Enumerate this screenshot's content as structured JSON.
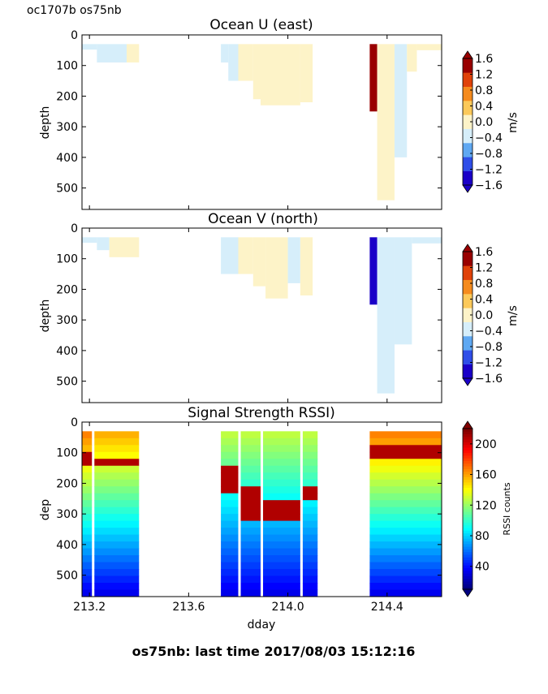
{
  "header": {
    "corner_label": "oc1707b os75nb",
    "footer_title": "os75nb: last time 2017/08/03 15:12:16"
  },
  "chart_data": [
    {
      "type": "heatmap",
      "title": "Ocean U (east)",
      "xlabel": "",
      "ylabel": "depth",
      "xlim": [
        213.17,
        214.62
      ],
      "ylim": [
        570,
        0
      ],
      "y_ticks": [
        "0",
        "100",
        "200",
        "300",
        "400",
        "500"
      ],
      "colorbar": {
        "label": "m/s",
        "ticks": [
          "1.6",
          "1.2",
          "0.8",
          "0.4",
          "0.0",
          "−0.4",
          "−0.8",
          "−1.2",
          "−1.6"
        ],
        "range": [
          -1.6,
          1.6
        ],
        "colors": [
          "#1a00c8",
          "#2f4ee8",
          "#5fa8f2",
          "#d6eefa",
          "#fdf3c8",
          "#fcc95a",
          "#f58b1e",
          "#e0420a",
          "#990000"
        ]
      },
      "data_blocks": [
        {
          "x0": 213.17,
          "x1": 213.23,
          "y0": 30,
          "y1": 48,
          "value": -0.2
        },
        {
          "x0": 213.23,
          "x1": 213.35,
          "y0": 30,
          "y1": 90,
          "value": -0.2
        },
        {
          "x0": 213.35,
          "x1": 213.4,
          "y0": 30,
          "y1": 90,
          "value": 0.1
        },
        {
          "x0": 213.73,
          "x1": 213.76,
          "y0": 30,
          "y1": 90,
          "value": -0.2
        },
        {
          "x0": 213.76,
          "x1": 213.8,
          "y0": 30,
          "y1": 150,
          "value": -0.2
        },
        {
          "x0": 213.8,
          "x1": 213.86,
          "y0": 30,
          "y1": 150,
          "value": 0.1
        },
        {
          "x0": 213.86,
          "x1": 213.89,
          "y0": 30,
          "y1": 210,
          "value": 0.1
        },
        {
          "x0": 213.89,
          "x1": 214.05,
          "y0": 30,
          "y1": 230,
          "value": 0.1
        },
        {
          "x0": 214.05,
          "x1": 214.1,
          "y0": 30,
          "y1": 220,
          "value": 0.1
        },
        {
          "x0": 214.33,
          "x1": 214.36,
          "y0": 30,
          "y1": 250,
          "value": 1.5
        },
        {
          "x0": 214.36,
          "x1": 214.43,
          "y0": 30,
          "y1": 540,
          "value": 0.1
        },
        {
          "x0": 214.43,
          "x1": 214.48,
          "y0": 30,
          "y1": 400,
          "value": -0.2
        },
        {
          "x0": 214.48,
          "x1": 214.52,
          "y0": 30,
          "y1": 120,
          "value": 0.1
        },
        {
          "x0": 214.52,
          "x1": 214.62,
          "y0": 30,
          "y1": 50,
          "value": 0.1
        }
      ]
    },
    {
      "type": "heatmap",
      "title": "Ocean V (north)",
      "xlabel": "",
      "ylabel": "depth",
      "xlim": [
        213.17,
        214.62
      ],
      "ylim": [
        570,
        0
      ],
      "y_ticks": [
        "0",
        "100",
        "200",
        "300",
        "400",
        "500"
      ],
      "colorbar": {
        "label": "m/s",
        "ticks": [
          "1.6",
          "1.2",
          "0.8",
          "0.4",
          "0.0",
          "−0.4",
          "−0.8",
          "−1.2",
          "−1.6"
        ],
        "range": [
          -1.6,
          1.6
        ],
        "colors": [
          "#1a00c8",
          "#2f4ee8",
          "#5fa8f2",
          "#d6eefa",
          "#fdf3c8",
          "#fcc95a",
          "#f58b1e",
          "#e0420a",
          "#990000"
        ]
      },
      "data_blocks": [
        {
          "x0": 213.17,
          "x1": 213.23,
          "y0": 30,
          "y1": 48,
          "value": -0.2
        },
        {
          "x0": 213.23,
          "x1": 213.28,
          "y0": 30,
          "y1": 72,
          "value": -0.2
        },
        {
          "x0": 213.28,
          "x1": 213.4,
          "y0": 30,
          "y1": 95,
          "value": 0.1
        },
        {
          "x0": 213.73,
          "x1": 213.8,
          "y0": 30,
          "y1": 150,
          "value": -0.2
        },
        {
          "x0": 213.8,
          "x1": 213.86,
          "y0": 30,
          "y1": 150,
          "value": 0.1
        },
        {
          "x0": 213.86,
          "x1": 213.91,
          "y0": 30,
          "y1": 190,
          "value": 0.1
        },
        {
          "x0": 213.91,
          "x1": 214.0,
          "y0": 30,
          "y1": 230,
          "value": 0.1
        },
        {
          "x0": 214.0,
          "x1": 214.05,
          "y0": 30,
          "y1": 180,
          "value": -0.2
        },
        {
          "x0": 214.05,
          "x1": 214.1,
          "y0": 30,
          "y1": 220,
          "value": 0.1
        },
        {
          "x0": 214.33,
          "x1": 214.36,
          "y0": 30,
          "y1": 250,
          "value": -1.6
        },
        {
          "x0": 214.36,
          "x1": 214.43,
          "y0": 30,
          "y1": 540,
          "value": -0.2
        },
        {
          "x0": 214.43,
          "x1": 214.5,
          "y0": 30,
          "y1": 380,
          "value": -0.2
        },
        {
          "x0": 214.5,
          "x1": 214.62,
          "y0": 30,
          "y1": 50,
          "value": -0.2
        }
      ]
    },
    {
      "type": "heatmap",
      "title": "Signal Strength RSSI)",
      "xlabel": "dday",
      "ylabel": "dep",
      "xlim": [
        213.17,
        214.62
      ],
      "ylim": [
        570,
        0
      ],
      "x_ticks": [
        "213.2",
        "213.6",
        "214.0",
        "214.4"
      ],
      "x_tick_values": [
        213.2,
        213.6,
        214.0,
        214.4
      ],
      "y_ticks": [
        "0",
        "100",
        "200",
        "300",
        "400",
        "500"
      ],
      "colorbar": {
        "label": "RSSI counts",
        "ticks": [
          "200",
          "160",
          "120",
          "80",
          "40"
        ],
        "range": [
          10,
          220
        ]
      },
      "data_blocks": [
        {
          "x0": 213.17,
          "x1": 213.21,
          "y0": 30,
          "y1": 570,
          "top_value": 170,
          "bottom_value": 30,
          "hot_band": [
            100,
            140
          ]
        },
        {
          "x0": 213.22,
          "x1": 213.4,
          "y0": 30,
          "y1": 570,
          "top_value": 160,
          "bottom_value": 30,
          "hot_band": [
            120,
            140
          ]
        },
        {
          "x0": 213.73,
          "x1": 213.8,
          "y0": 30,
          "y1": 570,
          "top_value": 130,
          "bottom_value": 30,
          "hot_band": [
            150,
            240
          ]
        },
        {
          "x0": 213.81,
          "x1": 213.89,
          "y0": 30,
          "y1": 570,
          "top_value": 130,
          "bottom_value": 30,
          "hot_band": [
            200,
            320
          ]
        },
        {
          "x0": 213.9,
          "x1": 214.05,
          "y0": 30,
          "y1": 570,
          "top_value": 130,
          "bottom_value": 30,
          "hot_band": [
            250,
            330
          ]
        },
        {
          "x0": 214.06,
          "x1": 214.12,
          "y0": 30,
          "y1": 570,
          "top_value": 130,
          "bottom_value": 30,
          "hot_band": [
            220,
            260
          ]
        },
        {
          "x0": 214.33,
          "x1": 214.62,
          "y0": 30,
          "y1": 570,
          "top_value": 170,
          "bottom_value": 30,
          "hot_band": [
            80,
            110
          ]
        }
      ]
    }
  ]
}
